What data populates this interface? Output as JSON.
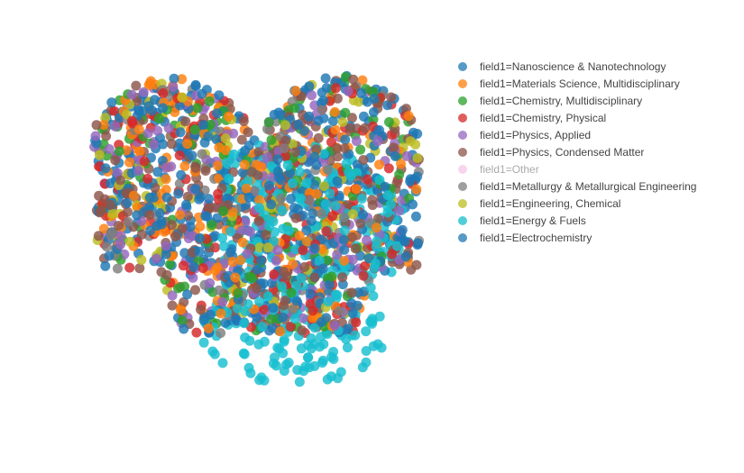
{
  "chart_data": {
    "type": "scatter",
    "title": "",
    "xlabel": "",
    "ylabel": "",
    "grid": false,
    "axes_visible": false,
    "legend_placement": "top-right",
    "xlim": [
      0,
      100
    ],
    "ylim": [
      0,
      100
    ],
    "series": [
      {
        "name": "field1=Nanoscience & Nanotechnology",
        "color": "#1f77b4",
        "visible": true,
        "cluster": "all",
        "count": 260
      },
      {
        "name": "field1=Materials Science, Multidisciplinary",
        "color": "#ff7f0e",
        "visible": true,
        "cluster": "all",
        "count": 200
      },
      {
        "name": "field1=Chemistry, Multidisciplinary",
        "color": "#2ca02c",
        "visible": true,
        "cluster": "all",
        "count": 150
      },
      {
        "name": "field1=Chemistry, Physical",
        "color": "#d62728",
        "visible": true,
        "cluster": "all",
        "count": 160
      },
      {
        "name": "field1=Physics, Applied",
        "color": "#9467bd",
        "visible": true,
        "cluster": "all",
        "count": 170
      },
      {
        "name": "field1=Physics, Condensed Matter",
        "color": "#8c564b",
        "visible": true,
        "cluster": "all",
        "count": 260
      },
      {
        "name": "field1=Other",
        "color": "#e377c2",
        "visible": false,
        "cluster": "all",
        "count": 0
      },
      {
        "name": "field1=Metallurgy & Metallurgical Engineering",
        "color": "#7f7f7f",
        "visible": true,
        "cluster": "all",
        "count": 90
      },
      {
        "name": "field1=Engineering, Chemical",
        "color": "#bcbd22",
        "visible": true,
        "cluster": "all",
        "count": 110
      },
      {
        "name": "field1=Energy & Fuels",
        "color": "#17becf",
        "visible": true,
        "cluster": "energy",
        "count": 320
      },
      {
        "name": "field1=Electrochemistry",
        "color": "#1f77b4",
        "visible": true,
        "cluster": "all",
        "count": 200
      }
    ]
  }
}
